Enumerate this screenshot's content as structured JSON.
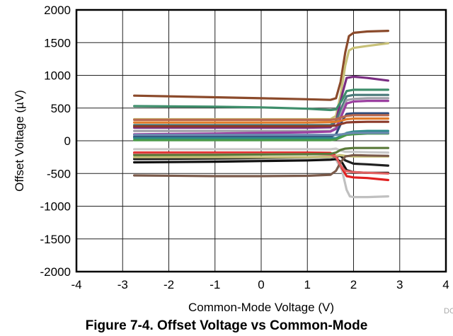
{
  "caption": "Figure 7-4. Offset Voltage vs Common-Mode",
  "doc_id": "DC",
  "chart_data": {
    "type": "line",
    "title": "",
    "xlabel": "Common-Mode Voltage (V)",
    "ylabel": "Offset Voltage (µV)",
    "xlim": [
      -4,
      4
    ],
    "ylim": [
      -2000,
      2000
    ],
    "x_ticks": [
      "-4",
      "-3",
      "-2",
      "-1",
      "0",
      "1",
      "2",
      "3",
      "4"
    ],
    "y_ticks": [
      "2000",
      "1500",
      "1000",
      "500",
      "0",
      "-500",
      "-1000",
      "-1500",
      "-2000"
    ],
    "grid": true,
    "series": [
      {
        "color": "#8B4A2B",
        "x": [
          -2.75,
          -1,
          0,
          1,
          1.5,
          1.62,
          1.72,
          1.82,
          1.9,
          2.0,
          2.3,
          2.75
        ],
        "y": [
          690,
          665,
          650,
          635,
          625,
          650,
          900,
          1350,
          1600,
          1650,
          1670,
          1680
        ]
      },
      {
        "color": "#C8C178",
        "x": [
          -2.75,
          -1,
          0,
          1,
          1.5,
          1.62,
          1.72,
          1.82,
          1.9,
          2.0,
          2.3,
          2.75
        ],
        "y": [
          330,
          330,
          330,
          330,
          330,
          380,
          700,
          1150,
          1380,
          1420,
          1450,
          1490
        ]
      },
      {
        "color": "#7A2E82",
        "x": [
          -2.75,
          -1,
          0,
          1,
          1.5,
          1.62,
          1.75,
          1.85,
          2.0,
          2.3,
          2.75
        ],
        "y": [
          200,
          200,
          200,
          200,
          205,
          300,
          700,
          960,
          980,
          960,
          920
        ]
      },
      {
        "color": "#3E8E6B",
        "x": [
          -2.75,
          -1,
          0,
          1,
          1.5,
          1.62,
          1.75,
          1.85,
          2.0,
          2.3,
          2.75
        ],
        "y": [
          530,
          520,
          510,
          490,
          470,
          480,
          620,
          760,
          780,
          780,
          780
        ]
      },
      {
        "color": "#4A7A7A",
        "x": [
          -2.75,
          -1,
          0,
          1,
          1.5,
          1.62,
          1.75,
          1.85,
          2.0,
          2.3,
          2.75
        ],
        "y": [
          240,
          240,
          240,
          240,
          240,
          300,
          520,
          680,
          700,
          700,
          700
        ]
      },
      {
        "color": "#A0A0A8",
        "x": [
          -2.75,
          -1,
          0,
          1,
          1.5,
          1.62,
          1.75,
          1.85,
          2.0,
          2.3,
          2.75
        ],
        "y": [
          150,
          150,
          150,
          150,
          150,
          200,
          450,
          620,
          640,
          650,
          650
        ]
      },
      {
        "color": "#9B3FA0",
        "x": [
          -2.75,
          -1,
          0,
          1,
          1.5,
          1.62,
          1.75,
          1.85,
          2.0,
          2.3,
          2.75
        ],
        "y": [
          100,
          110,
          120,
          130,
          140,
          180,
          400,
          570,
          600,
          610,
          610
        ]
      },
      {
        "color": "#2E4A7A",
        "x": [
          -2.75,
          -1,
          0,
          1,
          1.5,
          1.62,
          1.75,
          1.85,
          2.0,
          2.3,
          2.75
        ],
        "y": [
          60,
          60,
          60,
          60,
          60,
          100,
          300,
          410,
          420,
          420,
          420
        ]
      },
      {
        "color": "#B86A50",
        "x": [
          -2.75,
          -1,
          0,
          1,
          1.5,
          1.62,
          1.75,
          1.85,
          2.0,
          2.3,
          2.75
        ],
        "y": [
          320,
          320,
          320,
          320,
          320,
          330,
          360,
          380,
          390,
          390,
          390
        ]
      },
      {
        "color": "#E07A2A",
        "x": [
          -2.75,
          -1,
          0,
          1,
          1.5,
          1.62,
          1.75,
          1.85,
          2.0,
          2.3,
          2.75
        ],
        "y": [
          280,
          280,
          280,
          280,
          285,
          290,
          310,
          330,
          340,
          340,
          340
        ]
      },
      {
        "color": "#8B3A2A",
        "x": [
          -2.75,
          -1,
          0,
          1,
          1.5,
          1.62,
          1.75,
          1.85,
          2.0,
          2.3,
          2.75
        ],
        "y": [
          220,
          220,
          220,
          220,
          225,
          235,
          260,
          280,
          285,
          290,
          290
        ]
      },
      {
        "color": "#2E8A8A",
        "x": [
          -2.75,
          -1,
          0,
          1,
          1.5,
          1.62,
          1.75,
          1.85,
          2.0,
          2.3,
          2.75
        ],
        "y": [
          40,
          40,
          40,
          40,
          40,
          40,
          80,
          120,
          140,
          150,
          150
        ]
      },
      {
        "color": "#4A9A4A",
        "x": [
          -2.75,
          -1,
          0,
          1,
          1.5,
          1.62,
          1.75,
          1.85,
          2.0,
          2.3,
          2.75
        ],
        "y": [
          10,
          10,
          10,
          10,
          10,
          20,
          60,
          90,
          100,
          110,
          110
        ]
      },
      {
        "color": "#6A8AB0",
        "x": [
          -2.75,
          -1,
          0,
          1,
          1.5,
          1.62,
          1.75,
          1.85,
          2.0,
          2.3,
          2.75
        ],
        "y": [
          90,
          90,
          90,
          90,
          90,
          90,
          100,
          110,
          120,
          120,
          120
        ]
      },
      {
        "color": "#C0C0C0",
        "x": [
          -2.75,
          -1,
          0,
          1,
          1.5,
          1.62,
          1.75,
          1.85,
          1.92,
          2.0,
          2.3,
          2.75
        ],
        "y": [
          -280,
          -280,
          -280,
          -275,
          -270,
          -290,
          -450,
          -750,
          -850,
          -860,
          -860,
          -850
        ]
      },
      {
        "color": "#E02020",
        "x": [
          -2.75,
          -1,
          0,
          1,
          1.5,
          1.62,
          1.75,
          1.85,
          2.0,
          2.3,
          2.75
        ],
        "y": [
          -180,
          -180,
          -180,
          -180,
          -185,
          -230,
          -420,
          -540,
          -560,
          -570,
          -600
        ]
      },
      {
        "color": "#101010",
        "x": [
          -2.75,
          -1,
          0,
          1,
          1.5,
          1.62,
          1.75,
          1.85,
          2.0,
          2.3,
          2.75
        ],
        "y": [
          -330,
          -320,
          -310,
          -300,
          -290,
          -280,
          -330,
          -450,
          -480,
          -490,
          -490
        ]
      },
      {
        "color": "#202020",
        "x": [
          -2.75,
          -1,
          0,
          1,
          1.5,
          1.62,
          1.72,
          1.82,
          2.0,
          2.3,
          2.75
        ],
        "y": [
          -280,
          -270,
          -260,
          -250,
          -245,
          -240,
          -230,
          -300,
          -350,
          -360,
          -380
        ]
      },
      {
        "color": "#C8C178",
        "x": [
          -2.75,
          -1,
          0,
          1,
          1.5,
          1.62,
          1.72,
          1.82,
          2.0,
          2.3,
          2.75
        ],
        "y": [
          -250,
          -250,
          -250,
          -250,
          -245,
          -230,
          -220,
          -230,
          -240,
          -240,
          -240
        ]
      },
      {
        "color": "#7A5A4A",
        "x": [
          -2.75,
          -1,
          0,
          1,
          1.5,
          1.62,
          1.72,
          1.82,
          2.0,
          2.3,
          2.75
        ],
        "y": [
          -530,
          -540,
          -540,
          -535,
          -520,
          -460,
          -330,
          -240,
          -220,
          -225,
          -230
        ]
      },
      {
        "color": "#C8C8C8",
        "x": [
          -2.75,
          -1,
          0,
          1,
          1.5,
          1.62,
          1.72,
          1.82,
          2.0,
          2.3,
          2.75
        ],
        "y": [
          -130,
          -130,
          -130,
          -130,
          -130,
          -120,
          -150,
          -170,
          -170,
          -175,
          -180
        ]
      },
      {
        "color": "#E06060",
        "x": [
          -2.75,
          -1,
          0,
          1,
          1.5,
          1.62,
          1.72,
          1.82,
          2.0,
          2.3,
          2.75
        ],
        "y": [
          -200,
          -200,
          -200,
          -200,
          -210,
          -250,
          -380,
          -460,
          -480,
          -490,
          -500
        ]
      },
      {
        "color": "#5A7A3A",
        "x": [
          -2.75,
          -1,
          0,
          1,
          1.5,
          1.62,
          1.72,
          1.82,
          2.0,
          2.3,
          2.75
        ],
        "y": [
          -220,
          -215,
          -210,
          -205,
          -200,
          -180,
          -140,
          -120,
          -110,
          -110,
          -110
        ]
      }
    ]
  }
}
